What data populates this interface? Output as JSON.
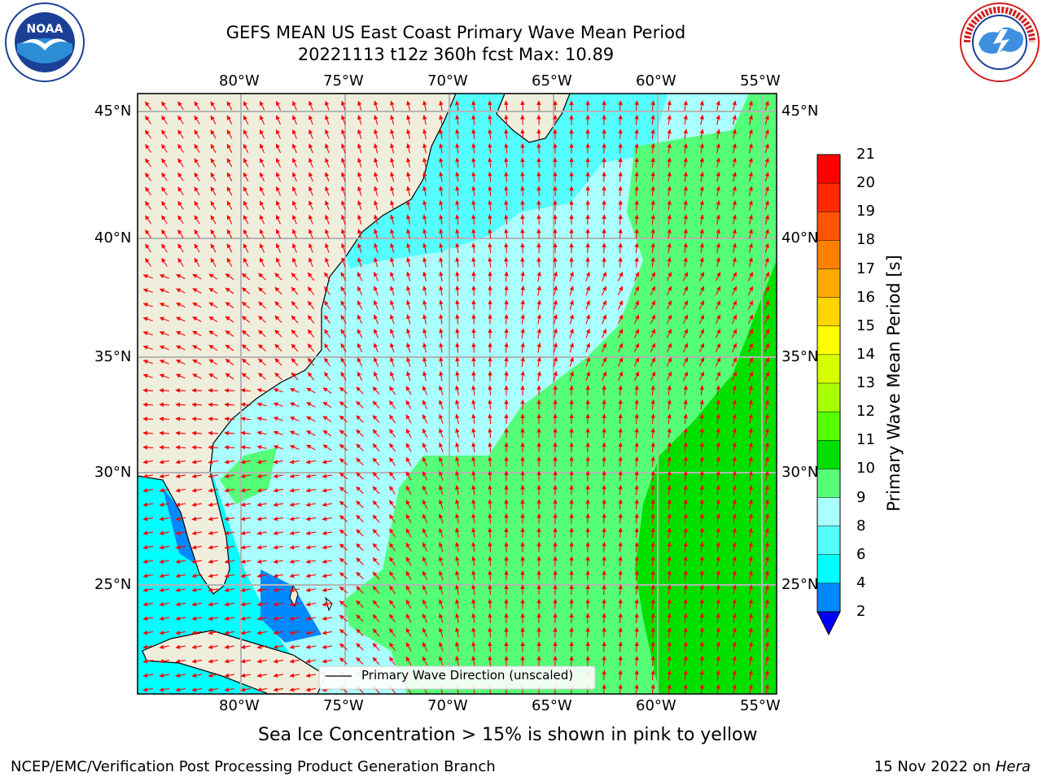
{
  "title": {
    "line1": "GEFS MEAN US East Coast Primary Wave Mean Period",
    "line2": "20221113 t12z 360h fcst   Max: 10.89"
  },
  "logos": {
    "left": {
      "name": "noaa-logo",
      "text": "NOAA",
      "ring_text": "NATIONAL OCEANIC AND ATMOSPHERIC ADMINISTRATION · U.S. DEPARTMENT OF COMMERCE"
    },
    "right": {
      "name": "nws-logo",
      "ring_text": "NATIONAL WEATHER SERVICE"
    }
  },
  "map": {
    "lon_ticks": [
      "80°W",
      "75°W",
      "70°W",
      "65°W",
      "60°W",
      "55°W"
    ],
    "lat_ticks": [
      "45°N",
      "40°N",
      "35°N",
      "30°N",
      "25°N"
    ],
    "legend": "Primary Wave Direction (unscaled)",
    "colors": {
      "land": "#efeedd",
      "ocean_light": "#aaffff",
      "grid": "#b4b4b4",
      "arrow": "#ff0000"
    }
  },
  "colorbar": {
    "label": "Primary Wave Mean Period [s]",
    "ticks": [
      "21",
      "20",
      "19",
      "18",
      "17",
      "16",
      "15",
      "14",
      "13",
      "12",
      "11",
      "10",
      "9",
      "8",
      "6",
      "4",
      "2"
    ],
    "colors": [
      "#ff0000",
      "#ff2a00",
      "#ff5500",
      "#ff8000",
      "#ffa800",
      "#ffd500",
      "#ffff00",
      "#d8ff00",
      "#a8ff00",
      "#55ff00",
      "#00e000",
      "#55ff77",
      "#aaffff",
      "#55ffff",
      "#00ffff",
      "#0088ff",
      "#0000ff"
    ]
  },
  "note": "Sea Ice Concentration > 15% is shown in pink to yellow",
  "footer": {
    "left": "NCEP/EMC/Verification Post Processing Product Generation Branch",
    "right_date": "15 Nov 2022 on ",
    "right_host": "Hera"
  }
}
